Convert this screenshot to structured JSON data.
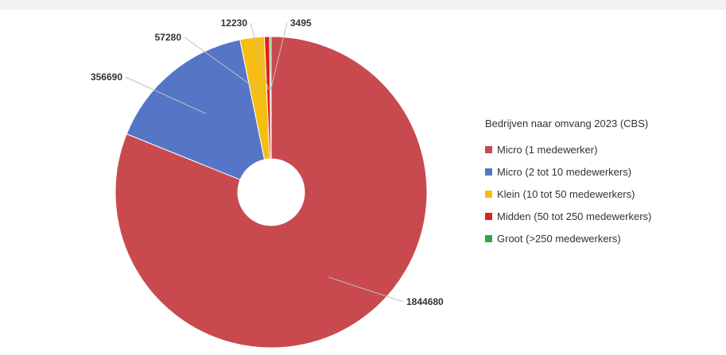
{
  "chart_data": {
    "type": "pie",
    "title": "",
    "legend_title": "Bedrijven naar omvang 2023 (CBS)",
    "legend_position": "right",
    "donut": true,
    "series": [
      {
        "name": "Micro (1 medewerker)",
        "value": 1844680,
        "label": "1844680",
        "color": "#C84A4F"
      },
      {
        "name": "Micro (2 tot 10 medewerkers)",
        "value": 356690,
        "label": "356690",
        "color": "#5575C6"
      },
      {
        "name": "Klein (10 tot 50 medewerkers)",
        "value": 57280,
        "label": "57280",
        "color": "#F6BD12"
      },
      {
        "name": "Midden (50 tot 250 medewerkers)",
        "value": 12230,
        "label": "12230",
        "color": "#E0201D"
      },
      {
        "name": "Groot (>250 medewerkers)",
        "value": 3495,
        "label": "3495",
        "color": "#2DA64A"
      }
    ]
  }
}
